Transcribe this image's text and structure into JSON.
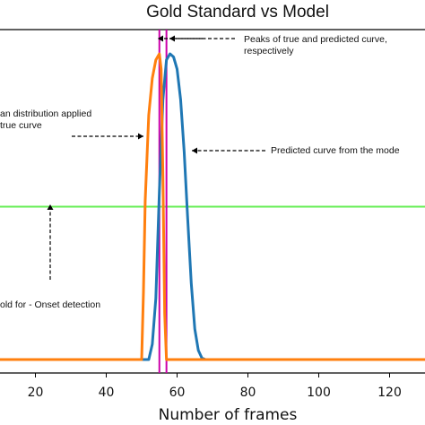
{
  "chart_data": {
    "type": "line",
    "title": "Gold Standard vs Model",
    "xlabel": "Number of frames",
    "ylabel": "",
    "xlim": [
      10,
      130
    ],
    "ylim": [
      0,
      1.05
    ],
    "x_ticks": [
      20,
      40,
      60,
      80,
      100,
      120
    ],
    "grid": false,
    "series": [
      {
        "color": "#1f77b4",
        "x": [
          10,
          52,
          53,
          54,
          55,
          56,
          57,
          58,
          59,
          60,
          61,
          62,
          63,
          64,
          65,
          66,
          67,
          68,
          130
        ],
        "y": [
          0,
          0,
          0.05,
          0.2,
          0.55,
          0.85,
          0.98,
          1.0,
          0.99,
          0.95,
          0.85,
          0.68,
          0.46,
          0.25,
          0.1,
          0.03,
          0.005,
          0,
          0
        ]
      },
      {
        "color": "#ff7f0e",
        "x": [
          10,
          50,
          50.5,
          51,
          52,
          53,
          54,
          55,
          55.5,
          56,
          56.5,
          57,
          130
        ],
        "y": [
          0,
          0,
          0.22,
          0.52,
          0.8,
          0.92,
          0.98,
          1.0,
          0.95,
          0.6,
          0.15,
          0,
          0
        ]
      }
    ],
    "vertical_lines": [
      {
        "x": 55,
        "color": "#cc00aa"
      },
      {
        "x": 57,
        "color": "#cc00aa"
      }
    ],
    "horizontal_lines": [
      {
        "y": 0.5,
        "color": "#66ee55"
      }
    ],
    "annotations": [
      {
        "lines": [
          "Peaks of true and predicted curve,",
          "respectively"
        ]
      },
      {
        "lines": [
          "an distribution applied",
          "true curve"
        ]
      },
      {
        "lines": [
          "Predicted curve from the mode"
        ]
      },
      {
        "lines": [
          "old for - Onset detection"
        ]
      }
    ]
  }
}
